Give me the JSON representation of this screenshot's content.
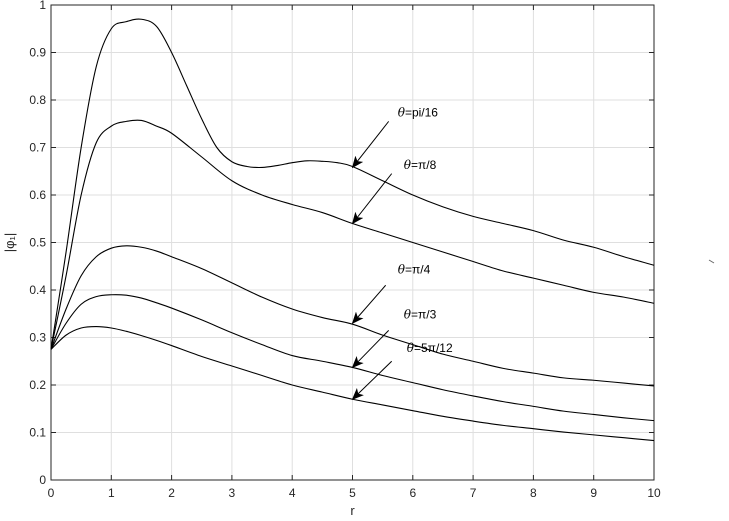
{
  "chart_data": {
    "type": "line",
    "xlabel": "r",
    "ylabel": "|φ₁|",
    "xlim": [
      0,
      10
    ],
    "ylim": [
      0,
      1
    ],
    "grid": true,
    "x_ticks": [
      "0",
      "1",
      "2",
      "3",
      "4",
      "5",
      "6",
      "7",
      "8",
      "9",
      "10"
    ],
    "y_ticks": [
      "0",
      "0.1",
      "0.2",
      "0.3",
      "0.4",
      "0.5",
      "0.6",
      "0.7",
      "0.8",
      "0.9",
      "1"
    ],
    "series": [
      {
        "x": [
          0,
          0.25,
          0.5,
          0.75,
          1,
          1.25,
          1.5,
          1.75,
          2,
          2.25,
          2.5,
          2.75,
          3,
          3.25,
          3.5,
          3.75,
          4,
          4.25,
          4.5,
          4.75,
          5,
          5.5,
          6,
          6.5,
          7,
          7.5,
          8,
          8.5,
          9,
          9.5,
          10
        ],
        "values": [
          0.275,
          0.48,
          0.7,
          0.87,
          0.95,
          0.965,
          0.97,
          0.955,
          0.9,
          0.83,
          0.76,
          0.7,
          0.67,
          0.66,
          0.658,
          0.662,
          0.668,
          0.672,
          0.671,
          0.668,
          0.66,
          0.63,
          0.6,
          0.575,
          0.555,
          0.54,
          0.525,
          0.505,
          0.49,
          0.47,
          0.452
        ]
      },
      {
        "x": [
          0,
          0.25,
          0.5,
          0.75,
          1,
          1.25,
          1.5,
          1.75,
          2,
          2.5,
          3,
          3.5,
          4,
          4.5,
          5,
          5.5,
          6,
          6.5,
          7,
          7.5,
          8,
          8.5,
          9,
          9.5,
          10
        ],
        "values": [
          0.275,
          0.43,
          0.6,
          0.71,
          0.745,
          0.755,
          0.757,
          0.745,
          0.73,
          0.68,
          0.63,
          0.6,
          0.58,
          0.563,
          0.54,
          0.52,
          0.5,
          0.48,
          0.46,
          0.44,
          0.425,
          0.41,
          0.395,
          0.385,
          0.372
        ]
      },
      {
        "x": [
          0,
          0.25,
          0.5,
          0.75,
          1,
          1.25,
          1.5,
          1.75,
          2,
          2.5,
          3,
          3.5,
          4,
          4.5,
          5,
          5.5,
          6,
          6.5,
          7,
          7.5,
          8,
          8.5,
          9,
          9.5,
          10
        ],
        "values": [
          0.275,
          0.36,
          0.43,
          0.47,
          0.488,
          0.493,
          0.49,
          0.482,
          0.47,
          0.445,
          0.415,
          0.385,
          0.36,
          0.342,
          0.328,
          0.305,
          0.285,
          0.265,
          0.25,
          0.235,
          0.225,
          0.215,
          0.21,
          0.204,
          0.198
        ]
      },
      {
        "x": [
          0,
          0.25,
          0.5,
          0.75,
          1,
          1.25,
          1.5,
          1.75,
          2,
          2.5,
          3,
          3.5,
          4,
          4.5,
          5,
          5.5,
          6,
          6.5,
          7,
          7.5,
          8,
          8.5,
          9,
          9.5,
          10
        ],
        "values": [
          0.275,
          0.33,
          0.37,
          0.386,
          0.39,
          0.389,
          0.383,
          0.373,
          0.362,
          0.337,
          0.31,
          0.285,
          0.262,
          0.25,
          0.237,
          0.22,
          0.205,
          0.19,
          0.177,
          0.165,
          0.155,
          0.145,
          0.138,
          0.131,
          0.125
        ]
      },
      {
        "x": [
          0,
          0.25,
          0.5,
          0.75,
          1,
          1.25,
          1.5,
          1.75,
          2,
          2.5,
          3,
          3.5,
          4,
          4.5,
          5,
          5.5,
          6,
          6.5,
          7,
          7.5,
          8,
          8.5,
          9,
          9.5,
          10
        ],
        "values": [
          0.275,
          0.305,
          0.32,
          0.323,
          0.32,
          0.313,
          0.304,
          0.294,
          0.283,
          0.26,
          0.24,
          0.22,
          0.2,
          0.185,
          0.17,
          0.158,
          0.146,
          0.134,
          0.124,
          0.115,
          0.108,
          0.101,
          0.095,
          0.089,
          0.083
        ]
      }
    ],
    "annotations": [
      {
        "prefix": "θ",
        "text": "=pi/16",
        "text_at": [
          5.75,
          0.765
        ],
        "tail": [
          5.6,
          0.755
        ],
        "head": [
          5.0,
          0.658
        ]
      },
      {
        "prefix": "θ",
        "text": "=π/8",
        "text_at": [
          5.85,
          0.655
        ],
        "tail": [
          5.65,
          0.645
        ],
        "head": [
          5.0,
          0.54
        ]
      },
      {
        "prefix": "θ",
        "text": "=π/4",
        "text_at": [
          5.75,
          0.435
        ],
        "tail": [
          5.55,
          0.41
        ],
        "head": [
          5.0,
          0.33
        ]
      },
      {
        "prefix": "θ",
        "text": "=π/3",
        "text_at": [
          5.85,
          0.34
        ],
        "tail": [
          5.6,
          0.315
        ],
        "head": [
          5.0,
          0.237
        ]
      },
      {
        "prefix": "θ",
        "text": "=5π/12",
        "text_at": [
          5.9,
          0.27
        ],
        "tail": [
          5.65,
          0.25
        ],
        "head": [
          5.0,
          0.17
        ]
      }
    ]
  }
}
